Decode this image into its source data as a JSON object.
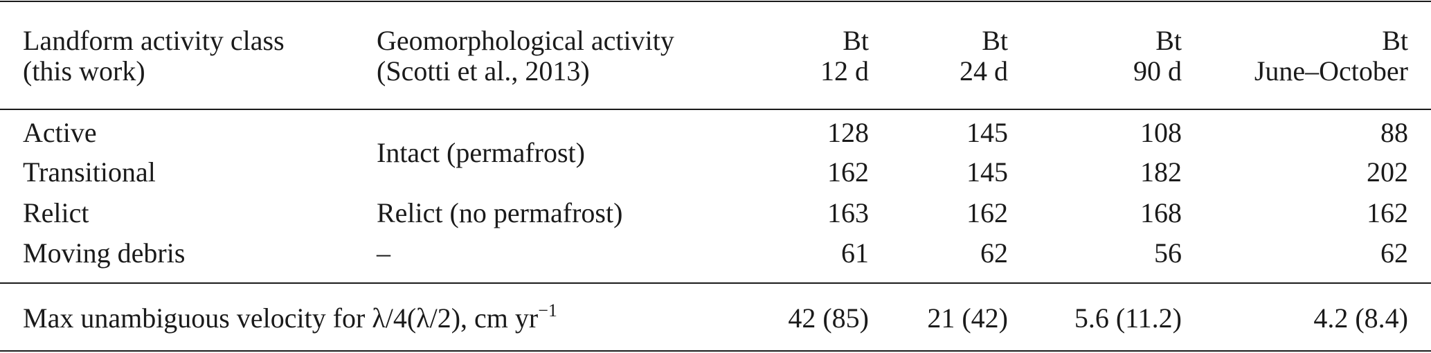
{
  "table": {
    "header": [
      {
        "lines": [
          "Landform activity class",
          "(this work)"
        ]
      },
      {
        "lines": [
          "Geomorphological activity",
          "(Scotti et al., 2013)"
        ]
      },
      {
        "lines": [
          "Bt",
          "12 d"
        ]
      },
      {
        "lines": [
          "Bt",
          "24 d"
        ]
      },
      {
        "lines": [
          "Bt",
          "90 d"
        ]
      },
      {
        "lines": [
          "Bt",
          "June–October"
        ]
      }
    ],
    "rows": [
      {
        "class": "Active",
        "activity": "Intact (permafrost)",
        "values": [
          128,
          145,
          108,
          88
        ]
      },
      {
        "class": "Transitional",
        "values": [
          162,
          145,
          182,
          202
        ]
      },
      {
        "class": "Relict",
        "activity": "Relict (no permafrost)",
        "values": [
          163,
          162,
          168,
          162
        ]
      },
      {
        "class": "Moving debris",
        "activity": "–",
        "values": [
          61,
          62,
          56,
          62
        ]
      }
    ],
    "footer": {
      "label": "Max unambiguous velocity for λ/4(λ/2), cm yr",
      "label_sup": "−1",
      "values": [
        "42 (85)",
        "21 (42)",
        "5.6 (11.2)",
        "4.2 (8.4)"
      ]
    }
  }
}
